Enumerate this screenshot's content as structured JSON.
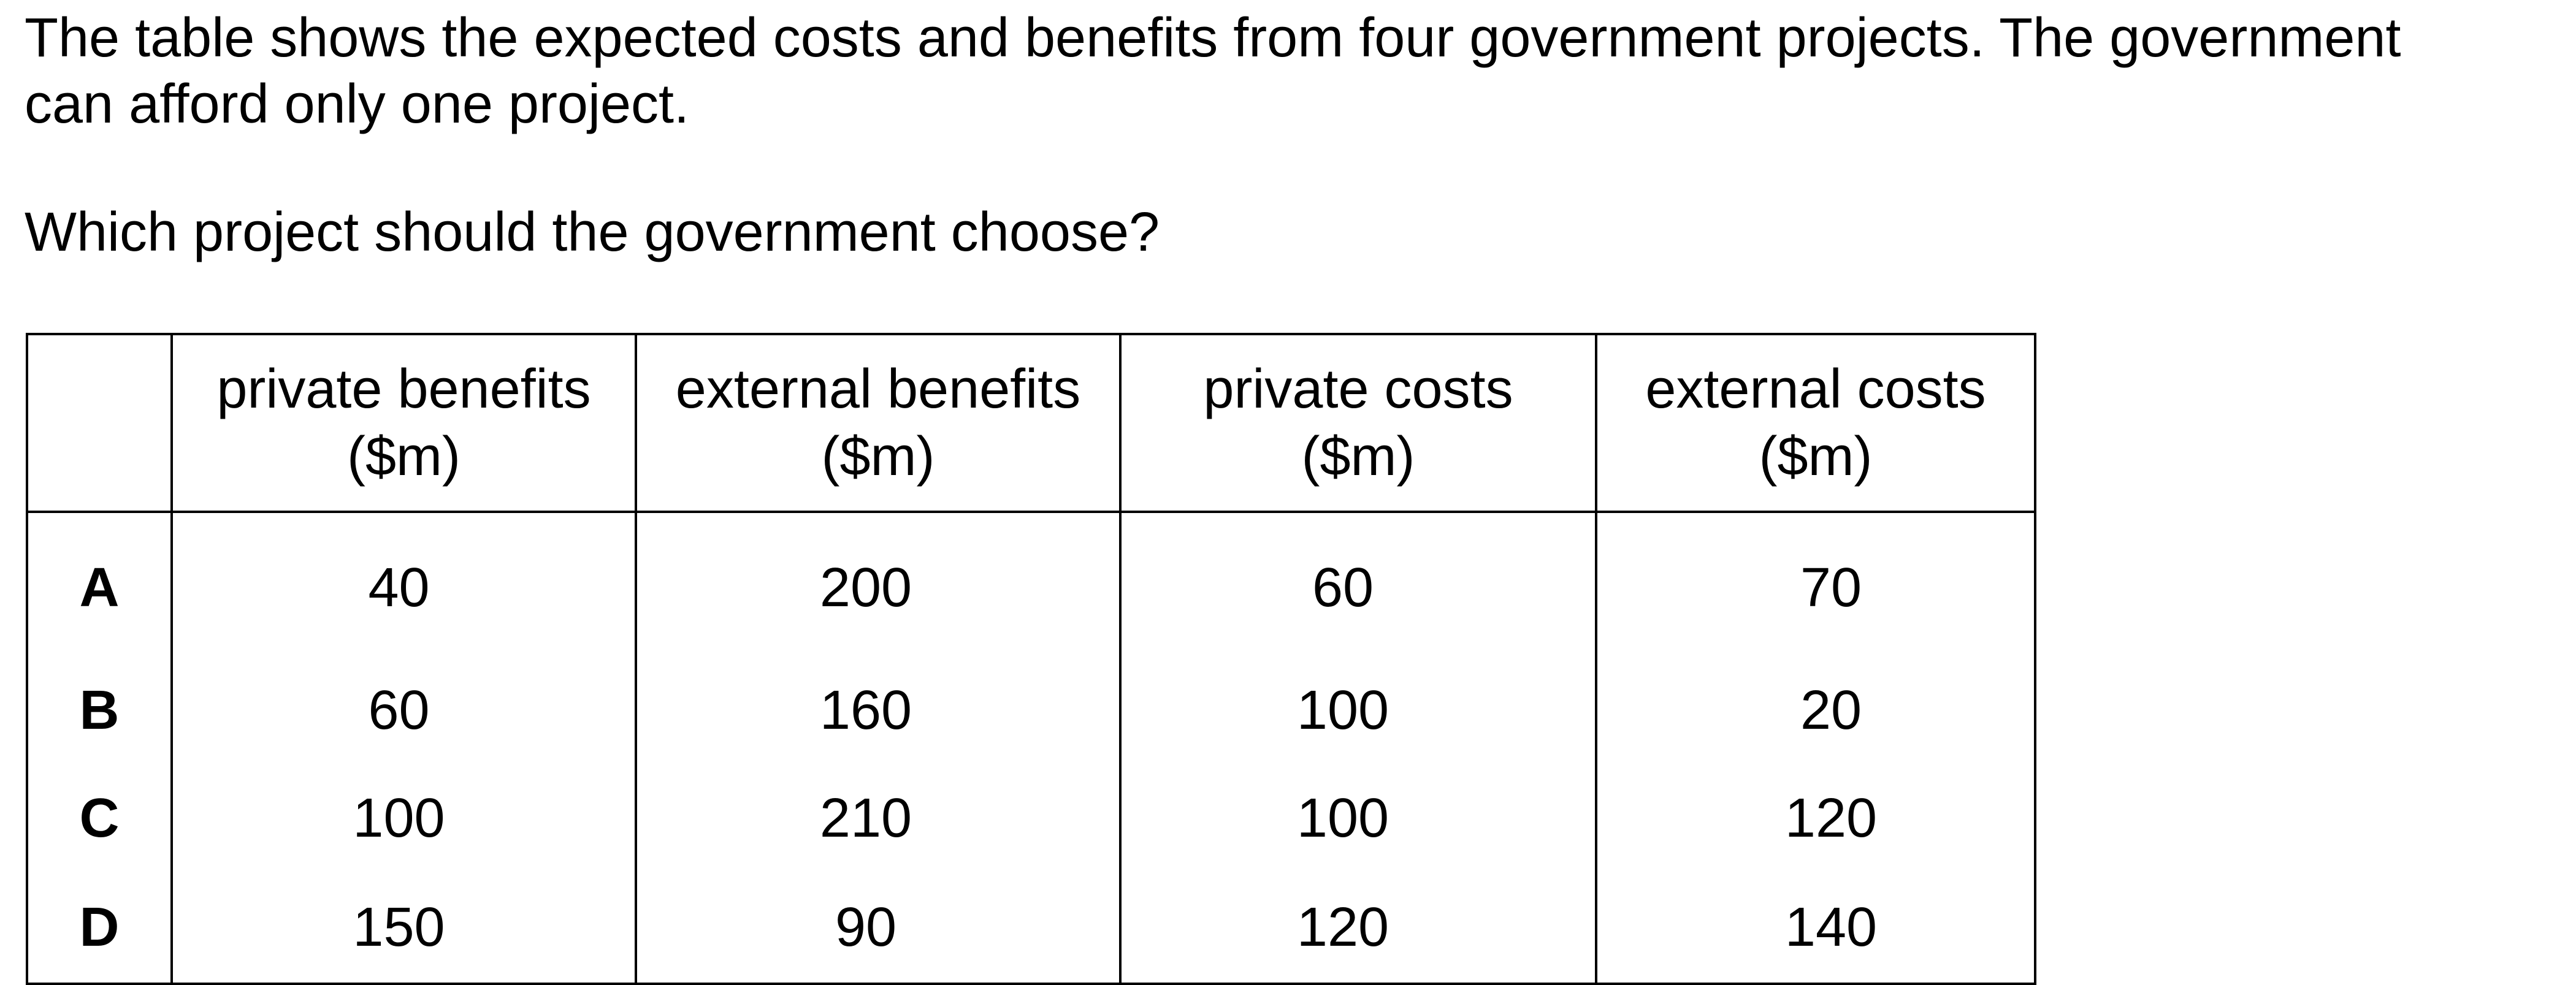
{
  "question": {
    "intro": "The table shows the expected costs and benefits from four government projects. The government can afford only one project.",
    "prompt": "Which project should the government choose?"
  },
  "table": {
    "headers": [
      {
        "line1": "private benefits",
        "line2": "($m)"
      },
      {
        "line1": "external benefits",
        "line2": "($m)"
      },
      {
        "line1": "private costs",
        "line2": "($m)"
      },
      {
        "line1": "external costs",
        "line2": "($m)"
      }
    ],
    "rows": [
      {
        "label": "A",
        "values": [
          "40",
          "200",
          "60",
          "70"
        ]
      },
      {
        "label": "B",
        "values": [
          "60",
          "160",
          "100",
          "20"
        ]
      },
      {
        "label": "C",
        "values": [
          "100",
          "210",
          "100",
          "120"
        ]
      },
      {
        "label": "D",
        "values": [
          "150",
          "90",
          "120",
          "140"
        ]
      }
    ]
  }
}
